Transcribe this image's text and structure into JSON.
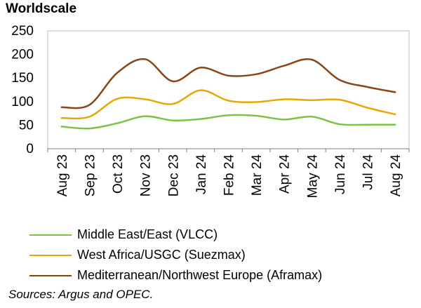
{
  "chart_data": {
    "type": "line",
    "title": "",
    "ylabel": "Worldscale",
    "xlabel": "",
    "ylim": [
      0,
      250
    ],
    "yticks": [
      0,
      50,
      100,
      150,
      200,
      250
    ],
    "grid": false,
    "legend_position": "bottom-left",
    "categories": [
      "Aug 23",
      "Sep 23",
      "Oct 23",
      "Nov 23",
      "Dec 23",
      "Jan 24",
      "Feb 24",
      "Mar 24",
      "Apr 24",
      "May 24",
      "Jun 24",
      "Jul 24",
      "Aug 24"
    ],
    "series": [
      {
        "name": "Middle East/East (VLCC)",
        "color": "#7dc242",
        "values": [
          47,
          43,
          54,
          69,
          60,
          63,
          71,
          70,
          62,
          68,
          52,
          51,
          51
        ]
      },
      {
        "name": "West Africa/USGC (Suezmax)",
        "color": "#e6a800",
        "values": [
          65,
          68,
          106,
          105,
          95,
          124,
          102,
          99,
          105,
          103,
          104,
          87,
          73
        ]
      },
      {
        "name": "Mediterranean/Northwest Europe (Aframax)",
        "color": "#8b4513",
        "values": [
          88,
          93,
          161,
          190,
          143,
          172,
          155,
          158,
          176,
          189,
          146,
          131,
          120
        ]
      }
    ]
  },
  "source": "Sources: Argus and OPEC."
}
